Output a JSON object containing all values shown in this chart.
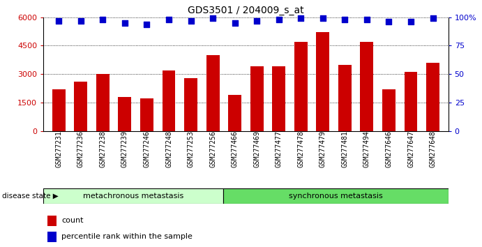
{
  "title": "GDS3501 / 204009_s_at",
  "categories": [
    "GSM277231",
    "GSM277236",
    "GSM277238",
    "GSM277239",
    "GSM277246",
    "GSM277248",
    "GSM277253",
    "GSM277256",
    "GSM277466",
    "GSM277469",
    "GSM277477",
    "GSM277478",
    "GSM277479",
    "GSM277481",
    "GSM277494",
    "GSM277646",
    "GSM277647",
    "GSM277648"
  ],
  "bar_values": [
    2200,
    2600,
    3000,
    1800,
    1700,
    3200,
    2800,
    4000,
    1900,
    3400,
    3400,
    4700,
    5200,
    3500,
    4700,
    2200,
    3100,
    3600
  ],
  "percentile_values": [
    97,
    97,
    98,
    95,
    94,
    98,
    97,
    99,
    95,
    97,
    98,
    99,
    99,
    98,
    98,
    96,
    96,
    99
  ],
  "bar_color": "#cc0000",
  "dot_color": "#0000cc",
  "group1_label": "metachronous metastasis",
  "group2_label": "synchronous metastasis",
  "group1_color": "#ccffcc",
  "group2_color": "#66dd66",
  "group1_count": 8,
  "group2_count": 10,
  "disease_state_label": "disease state",
  "legend_count_label": "count",
  "legend_percentile_label": "percentile rank within the sample",
  "ylim_left": [
    0,
    6000
  ],
  "ylim_right": [
    0,
    100
  ],
  "yticks_left": [
    0,
    1500,
    3000,
    4500,
    6000
  ],
  "ytick_labels_left": [
    "0",
    "1500",
    "3000",
    "4500",
    "6000"
  ],
  "yticks_right": [
    0,
    25,
    50,
    75,
    100
  ],
  "ytick_labels_right": [
    "0",
    "25",
    "50",
    "75",
    "100%"
  ],
  "background_color": "#ffffff",
  "plot_bg_color": "#ffffff"
}
